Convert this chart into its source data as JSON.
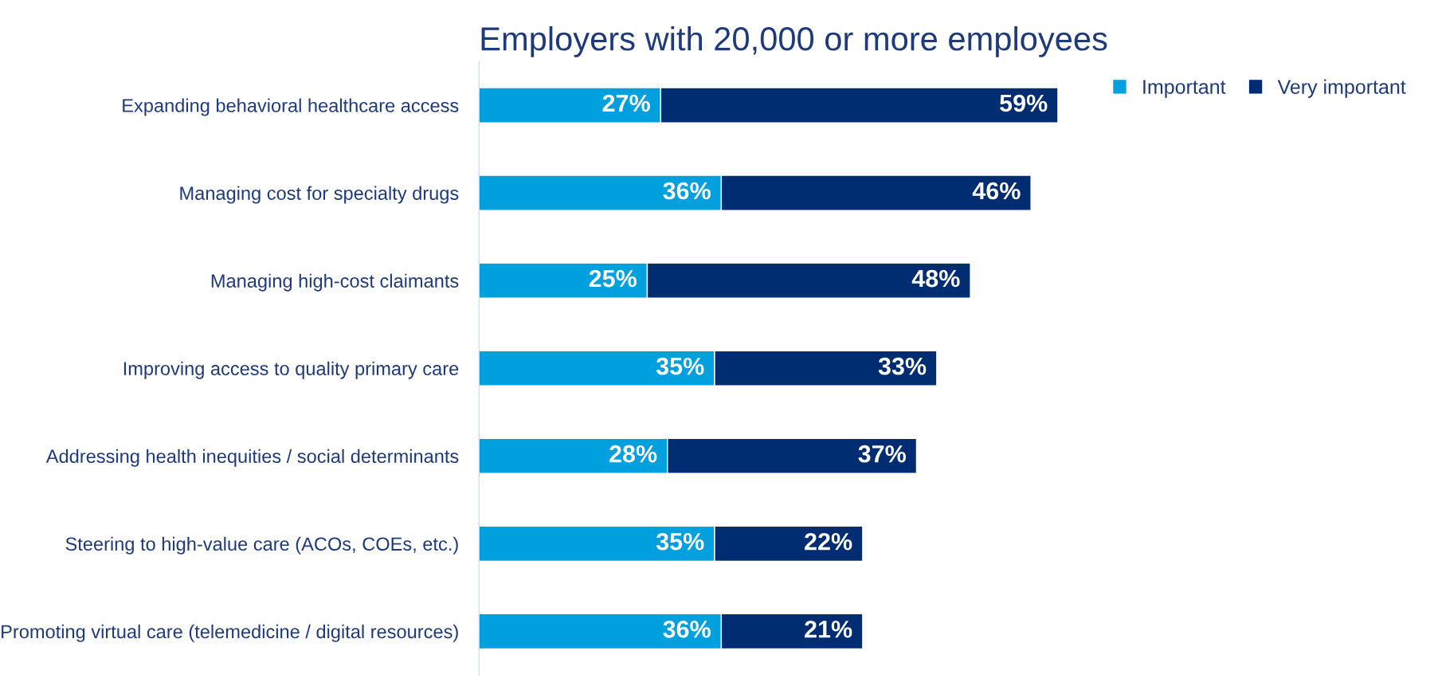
{
  "chart_data": {
    "type": "bar",
    "orientation": "horizontal",
    "stacked": true,
    "title": "Employers with 20,000 or more employees",
    "categories": [
      "Expanding behavioral healthcare access",
      "Managing cost for specialty drugs",
      "Managing high-cost claimants",
      "Improving access to quality primary care",
      "Addressing health inequities / social determinants",
      "Steering to high-value care (ACOs, COEs, etc.)",
      "Promoting virtual care (telemedicine / digital resources)"
    ],
    "series": [
      {
        "name": "Important",
        "color": "#00a0df",
        "values": [
          27,
          36,
          25,
          35,
          28,
          35,
          36
        ],
        "value_labels": [
          "27%",
          "36%",
          "25%",
          "35%",
          "28%",
          "35%",
          "36%"
        ]
      },
      {
        "name": "Very important",
        "color": "#002d72",
        "values": [
          59,
          46,
          48,
          33,
          37,
          22,
          21
        ],
        "value_labels": [
          "59%",
          "46%",
          "48%",
          "33%",
          "37%",
          "22%",
          "21%"
        ]
      }
    ],
    "legend": "top right",
    "grid": false
  }
}
